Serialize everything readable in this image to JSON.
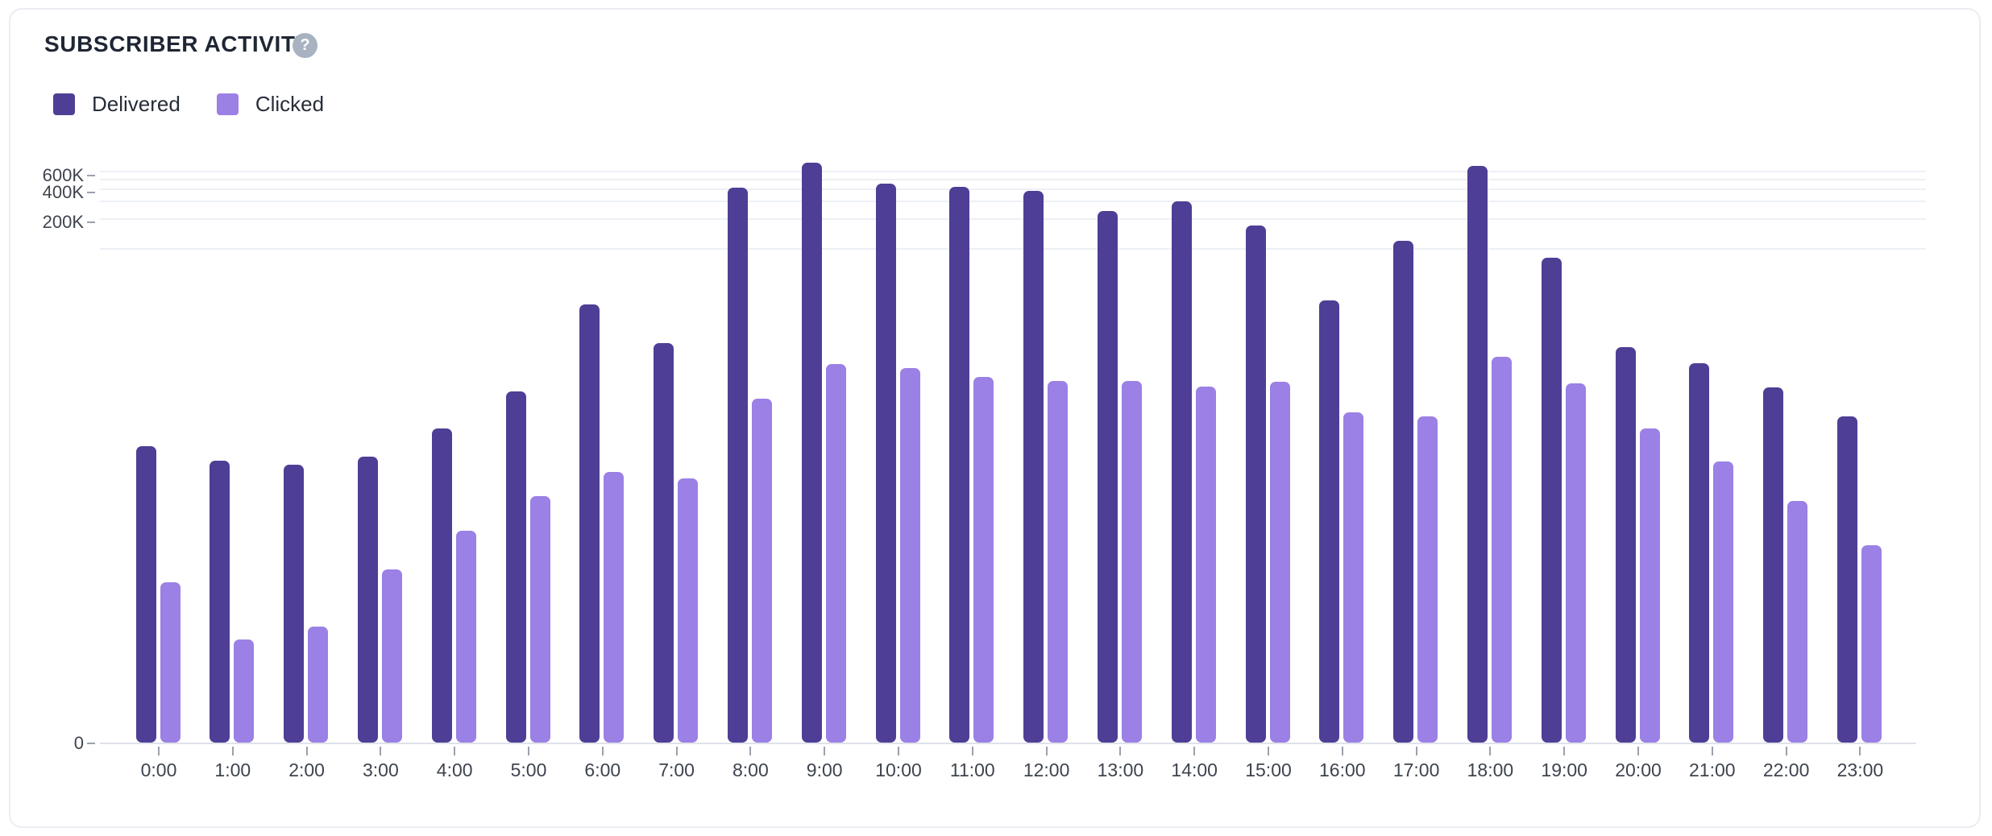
{
  "card": {
    "title": "SUBSCRIBER ACTIVITY",
    "help_glyph": "?"
  },
  "legend": {
    "items": [
      {
        "label": "Delivered",
        "color": "#4f3e95"
      },
      {
        "label": "Clicked",
        "color": "#9b80e5"
      }
    ]
  },
  "chart_data": {
    "type": "bar",
    "title": "SUBSCRIBER ACTIVITY",
    "categories": [
      "0:00",
      "1:00",
      "2:00",
      "3:00",
      "4:00",
      "5:00",
      "6:00",
      "7:00",
      "8:00",
      "9:00",
      "10:00",
      "11:00",
      "12:00",
      "13:00",
      "14:00",
      "15:00",
      "16:00",
      "17:00",
      "18:00",
      "19:00",
      "20:00",
      "21:00",
      "22:00",
      "23:00"
    ],
    "series": [
      {
        "name": "Delivered",
        "color": "#4f3e95",
        "values": [
          1000,
          710,
          650,
          780,
          1500,
          3600,
          27000,
          11000,
          410000,
          740000,
          450000,
          420000,
          380000,
          240000,
          300000,
          170000,
          30000,
          120000,
          680000,
          80000,
          10000,
          6900,
          3900,
          2000
        ]
      },
      {
        "name": "Clicked",
        "color": "#9b80e5",
        "values": [
          42,
          11,
          15,
          57,
          140,
          310,
          550,
          470,
          3000,
          6800,
          6200,
          5000,
          4600,
          4600,
          4000,
          4500,
          2200,
          2000,
          8000,
          4300,
          1500,
          700,
          280,
          100
        ]
      }
    ],
    "y_axis": {
      "scale": "log10",
      "baseline_label": "0",
      "ticks": [
        {
          "label": "600K",
          "value": 600000
        },
        {
          "label": "400K",
          "value": 400000
        },
        {
          "label": "200K",
          "value": 200000
        },
        {
          "label": "0",
          "value": 0
        }
      ],
      "gridline_values": [
        100000,
        200000,
        300000,
        400000,
        500000,
        600000
      ],
      "range_top": 700000
    },
    "grid": true,
    "legend_position": "top-left"
  }
}
